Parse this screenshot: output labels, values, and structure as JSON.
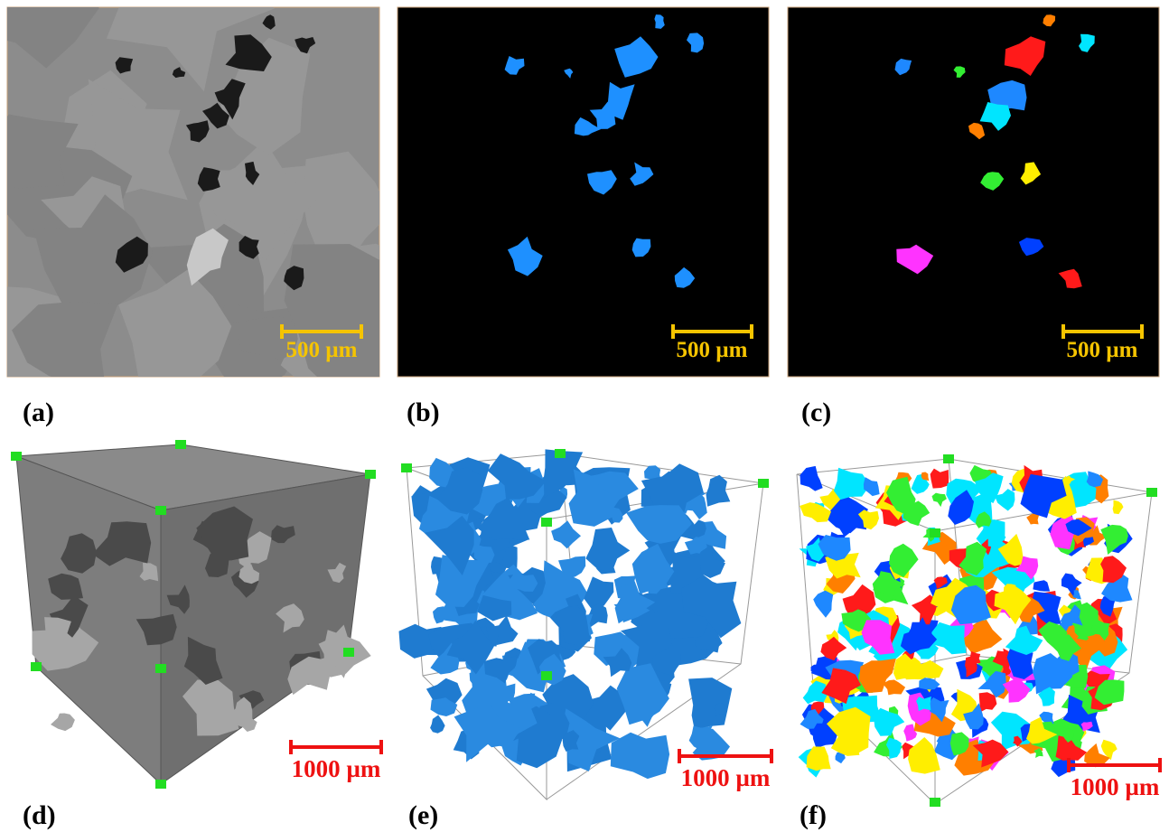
{
  "panels": [
    {
      "label": "(a)",
      "scale_bar": "500 µm"
    },
    {
      "label": "(b)",
      "scale_bar": "500 µm"
    },
    {
      "label": "(c)",
      "scale_bar": "500 µm"
    },
    {
      "label": "(d)",
      "scale_bar": "1000 µm"
    },
    {
      "label": "(e)",
      "scale_bar": "1000 µm"
    },
    {
      "label": "(f)",
      "scale_bar": "1000 µm"
    }
  ]
}
